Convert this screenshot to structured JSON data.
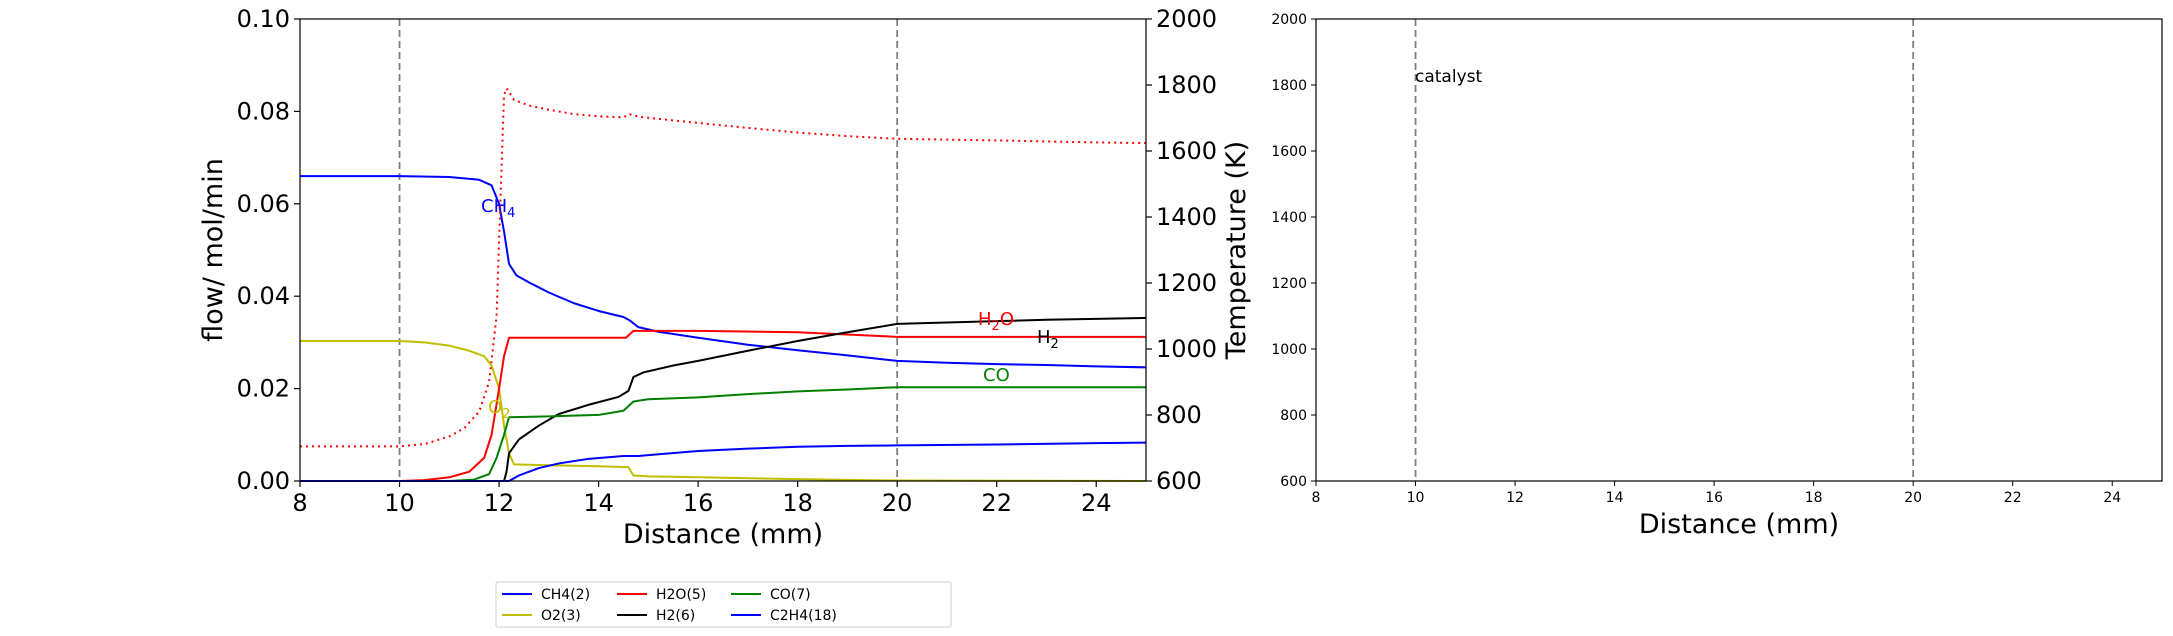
{
  "left_panel": {
    "xlabel": "Distance (mm)",
    "ylabel_left": "flow/ mol/min",
    "ylabel_right": "Temperature (K)",
    "x_ticks": [
      "8",
      "10",
      "12",
      "14",
      "16",
      "18",
      "20",
      "22",
      "24"
    ],
    "y_left_ticks": [
      "0.00",
      "0.02",
      "0.04",
      "0.06",
      "0.08",
      "0.10"
    ],
    "y_right_ticks": [
      "600",
      "800",
      "1000",
      "1200",
      "1400",
      "1600",
      "1800",
      "2000"
    ],
    "annotations": {
      "ch4": {
        "main": "CH",
        "sub": "4",
        "color": "#0000ff"
      },
      "h2o": {
        "main": "H",
        "sub": "2",
        "tail": "O",
        "color": "#ff0000"
      },
      "h2": {
        "main": "H",
        "sub": "2",
        "color": "#000000"
      },
      "co": {
        "main": "CO",
        "color": "#008000"
      },
      "o2": {
        "main": "O",
        "sub": "2",
        "color": "#bfbf00"
      }
    }
  },
  "right_panel": {
    "xlabel": "Distance (mm)",
    "annotation": "catalyst",
    "x_ticks": [
      "8",
      "10",
      "12",
      "14",
      "16",
      "18",
      "20",
      "22",
      "24"
    ],
    "y_ticks": [
      "600",
      "800",
      "1000",
      "1200",
      "1400",
      "1600",
      "1800",
      "2000"
    ]
  },
  "legend": [
    {
      "label": "CH4(2)",
      "color": "#0000ff"
    },
    {
      "label": "O2(3)",
      "color": "#bfbf00"
    },
    {
      "label": "H2O(5)",
      "color": "#ff0000"
    },
    {
      "label": "H2(6)",
      "color": "#000000"
    },
    {
      "label": "CO(7)",
      "color": "#008000"
    },
    {
      "label": "C2H4(18)",
      "color": "#0000ff"
    }
  ],
  "chart_data": [
    {
      "type": "line",
      "xlabel": "Distance (mm)",
      "ylabel": "flow/ mol/min",
      "y2label": "Temperature (K)",
      "xlim": [
        8,
        25
      ],
      "ylim": [
        0,
        0.1
      ],
      "y2lim": [
        600,
        2000
      ],
      "vlines": [
        10,
        20
      ],
      "series": [
        {
          "name": "CH4(2)",
          "color": "#0000ff",
          "axis": "left",
          "points": [
            [
              8,
              0.066
            ],
            [
              10,
              0.066
            ],
            [
              11,
              0.0658
            ],
            [
              11.6,
              0.0652
            ],
            [
              11.85,
              0.064
            ],
            [
              12.0,
              0.06
            ],
            [
              12.1,
              0.054
            ],
            [
              12.2,
              0.047
            ],
            [
              12.35,
              0.0445
            ],
            [
              12.6,
              0.043
            ],
            [
              13,
              0.0408
            ],
            [
              13.5,
              0.0385
            ],
            [
              14,
              0.0368
            ],
            [
              14.5,
              0.0355
            ],
            [
              14.62,
              0.0348
            ],
            [
              14.8,
              0.0333
            ],
            [
              15.2,
              0.0323
            ],
            [
              16,
              0.031
            ],
            [
              17,
              0.0295
            ],
            [
              18,
              0.0283
            ],
            [
              19,
              0.0272
            ],
            [
              20,
              0.026
            ],
            [
              21,
              0.0256
            ],
            [
              22,
              0.0253
            ],
            [
              23,
              0.0251
            ],
            [
              24,
              0.0248
            ],
            [
              25,
              0.0246
            ]
          ]
        },
        {
          "name": "O2(3)",
          "color": "#bfbf00",
          "axis": "left",
          "points": [
            [
              8,
              0.0303
            ],
            [
              10,
              0.0303
            ],
            [
              10.5,
              0.03
            ],
            [
              11,
              0.0293
            ],
            [
              11.4,
              0.0282
            ],
            [
              11.7,
              0.027
            ],
            [
              11.85,
              0.025
            ],
            [
              12.0,
              0.02
            ],
            [
              12.1,
              0.012
            ],
            [
              12.2,
              0.006
            ],
            [
              12.3,
              0.0036
            ],
            [
              13,
              0.0034
            ],
            [
              14,
              0.0032
            ],
            [
              14.6,
              0.003
            ],
            [
              14.7,
              0.0012
            ],
            [
              15,
              0.001
            ],
            [
              16,
              0.0008
            ],
            [
              18,
              0.0004
            ],
            [
              20,
              0.0001
            ],
            [
              25,
              0
            ]
          ]
        },
        {
          "name": "H2O(5)",
          "color": "#ff0000",
          "axis": "left",
          "points": [
            [
              8,
              0
            ],
            [
              10,
              0
            ],
            [
              10.5,
              0.0002
            ],
            [
              11,
              0.0008
            ],
            [
              11.4,
              0.002
            ],
            [
              11.7,
              0.005
            ],
            [
              11.85,
              0.01
            ],
            [
              12.0,
              0.02
            ],
            [
              12.1,
              0.027
            ],
            [
              12.2,
              0.031
            ],
            [
              13,
              0.031
            ],
            [
              14,
              0.031
            ],
            [
              14.55,
              0.031
            ],
            [
              14.7,
              0.0325
            ],
            [
              16,
              0.0325
            ],
            [
              18,
              0.0322
            ],
            [
              20,
              0.0312
            ],
            [
              22,
              0.0312
            ],
            [
              25,
              0.0312
            ]
          ]
        },
        {
          "name": "H2(6)",
          "color": "#000000",
          "axis": "left",
          "points": [
            [
              8,
              0
            ],
            [
              12.1,
              0
            ],
            [
              12.15,
              0.002
            ],
            [
              12.2,
              0.006
            ],
            [
              12.4,
              0.009
            ],
            [
              12.8,
              0.012
            ],
            [
              13.2,
              0.0145
            ],
            [
              13.8,
              0.0165
            ],
            [
              14.4,
              0.0182
            ],
            [
              14.6,
              0.0195
            ],
            [
              14.7,
              0.0225
            ],
            [
              14.9,
              0.0235
            ],
            [
              15.5,
              0.025
            ],
            [
              16,
              0.026
            ],
            [
              17,
              0.0282
            ],
            [
              18,
              0.0303
            ],
            [
              19,
              0.0322
            ],
            [
              20,
              0.034
            ],
            [
              21,
              0.0343
            ],
            [
              22,
              0.0346
            ],
            [
              23,
              0.0349
            ],
            [
              24,
              0.0351
            ],
            [
              25,
              0.0353
            ]
          ]
        },
        {
          "name": "CO(7)",
          "color": "#008000",
          "axis": "left",
          "points": [
            [
              8,
              0
            ],
            [
              11,
              0
            ],
            [
              11.5,
              0.0003
            ],
            [
              11.8,
              0.0015
            ],
            [
              11.95,
              0.005
            ],
            [
              12.1,
              0.01
            ],
            [
              12.2,
              0.0138
            ],
            [
              13,
              0.014
            ],
            [
              14,
              0.0143
            ],
            [
              14.5,
              0.0152
            ],
            [
              14.7,
              0.0172
            ],
            [
              15,
              0.0177
            ],
            [
              16,
              0.0181
            ],
            [
              17,
              0.0188
            ],
            [
              18,
              0.0194
            ],
            [
              19,
              0.0198
            ],
            [
              20,
              0.0203
            ],
            [
              25,
              0.0203
            ]
          ]
        },
        {
          "name": "C2H4(18)",
          "color": "#0000ff",
          "axis": "left",
          "points": [
            [
              8,
              0
            ],
            [
              12.2,
              0
            ],
            [
              12.4,
              0.0012
            ],
            [
              12.8,
              0.0028
            ],
            [
              13.2,
              0.0038
            ],
            [
              13.8,
              0.0048
            ],
            [
              14.5,
              0.0054
            ],
            [
              14.8,
              0.0054
            ],
            [
              15,
              0.0056
            ],
            [
              16,
              0.0065
            ],
            [
              17,
              0.007
            ],
            [
              18,
              0.0074
            ],
            [
              19,
              0.0076
            ],
            [
              20,
              0.0077
            ],
            [
              22,
              0.0079
            ],
            [
              24,
              0.0082
            ],
            [
              25,
              0.0083
            ]
          ]
        },
        {
          "name": "Temperature",
          "color": "#ff0000",
          "axis": "right",
          "style": "dotted",
          "points": [
            [
              8,
              705
            ],
            [
              10,
              705
            ],
            [
              10.5,
              712
            ],
            [
              11,
              735
            ],
            [
              11.3,
              760
            ],
            [
              11.6,
              810
            ],
            [
              11.8,
              900
            ],
            [
              11.95,
              1100
            ],
            [
              12.05,
              1550
            ],
            [
              12.1,
              1770
            ],
            [
              12.15,
              1790
            ],
            [
              12.3,
              1755
            ],
            [
              12.6,
              1738
            ],
            [
              13,
              1725
            ],
            [
              13.5,
              1712
            ],
            [
              14,
              1705
            ],
            [
              14.5,
              1702
            ],
            [
              14.62,
              1712
            ],
            [
              14.7,
              1708
            ],
            [
              14.9,
              1702
            ],
            [
              16,
              1685
            ],
            [
              17,
              1670
            ],
            [
              18,
              1656
            ],
            [
              19,
              1645
            ],
            [
              20,
              1637
            ],
            [
              22,
              1632
            ],
            [
              24,
              1626
            ],
            [
              25,
              1624
            ]
          ]
        }
      ]
    },
    {
      "type": "line",
      "xlabel": "Distance (mm)",
      "xlim": [
        8,
        25
      ],
      "ylim": [
        600,
        2000
      ],
      "vlines": [
        10,
        20
      ],
      "series": []
    }
  ]
}
